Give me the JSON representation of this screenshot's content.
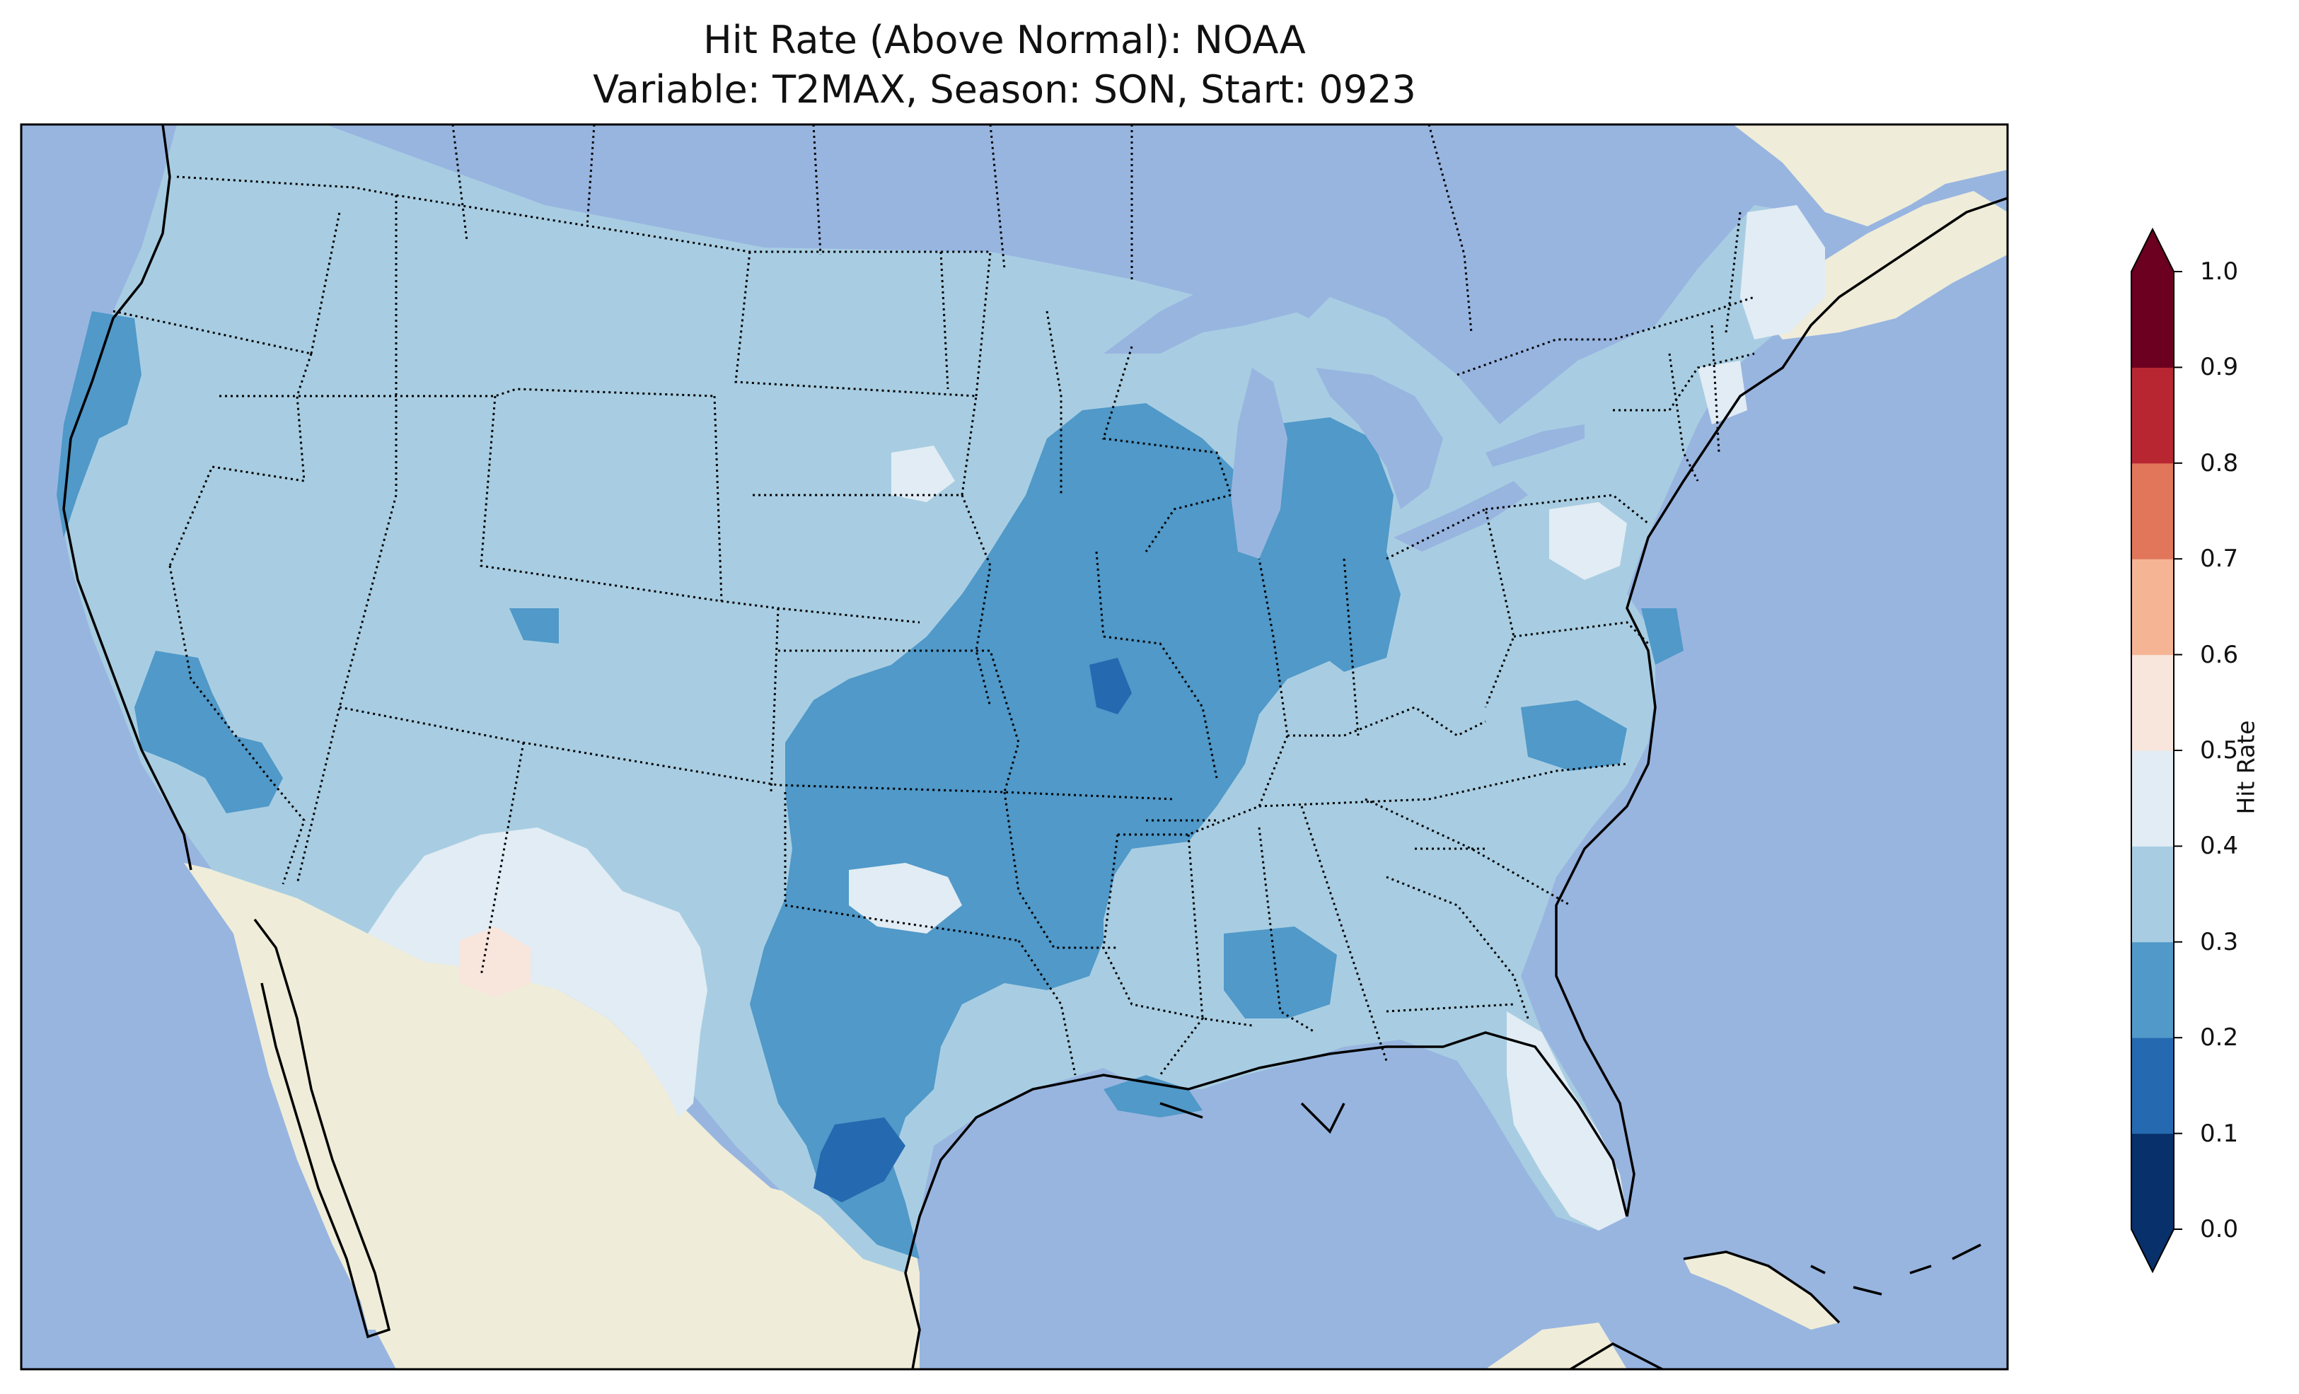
{
  "title": {
    "line1": "Hit Rate (Above Normal): NOAA",
    "line2": "Variable: T2MAX, Season: SON, Start: 0923"
  },
  "colorbar": {
    "label": "Hit Rate",
    "ticks": [
      "0.0",
      "0.1",
      "0.2",
      "0.3",
      "0.4",
      "0.5",
      "0.6",
      "0.7",
      "0.8",
      "0.9",
      "1.0"
    ],
    "min": 0.0,
    "max": 1.0,
    "extend": "both",
    "colors": [
      "#053061",
      "#2166ac",
      "#4393c3",
      "#92c5de",
      "#d1e5f0",
      "#fddbc7",
      "#f4a582",
      "#d6604d",
      "#b2182b",
      "#67001f"
    ],
    "colors_as_rendered": [
      "#08306b",
      "#2569b0",
      "#5099c9",
      "#a8cde2",
      "#e1ecf4",
      "#f8e5dc",
      "#f5b594",
      "#e1765b",
      "#b82632",
      "#6b0020"
    ]
  },
  "map": {
    "region": "Contiguous United States",
    "ocean_color": "#98b5e0",
    "land_color": "#efedd9",
    "dominant_value_range": "0.3–0.4",
    "regions": [
      {
        "name": "Central Plains / Texas / Midwest",
        "range": "0.2–0.3"
      },
      {
        "name": "South Texas pocket",
        "range": "0.1–0.2"
      },
      {
        "name": "Southern Missouri pocket",
        "range": "0.1–0.2"
      },
      {
        "name": "Arizona / New Mexico / West Texas",
        "range": "0.4–0.5"
      },
      {
        "name": "Southeast Arizona",
        "range": "0.5–0.6"
      },
      {
        "name": "Florida peninsula",
        "range": "0.4–0.5"
      },
      {
        "name": "Maine",
        "range": "0.4–0.5"
      },
      {
        "name": "Central Pennsylvania",
        "range": "0.4–0.5"
      },
      {
        "name": "Western Nevada / Northern California coast",
        "range": "0.2–0.3"
      }
    ]
  }
}
